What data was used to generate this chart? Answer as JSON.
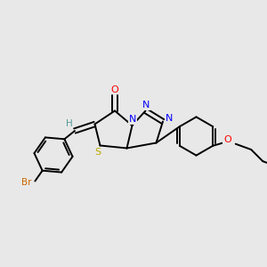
{
  "bg_color": "#e8e8e8",
  "bond_color": "#000000",
  "atom_colors": {
    "O": "#ff0000",
    "N": "#0000ff",
    "S": "#bbaa00",
    "Br": "#cc6600",
    "H": "#559999",
    "C": "#000000"
  },
  "figsize": [
    3.0,
    3.0
  ],
  "dpi": 100
}
